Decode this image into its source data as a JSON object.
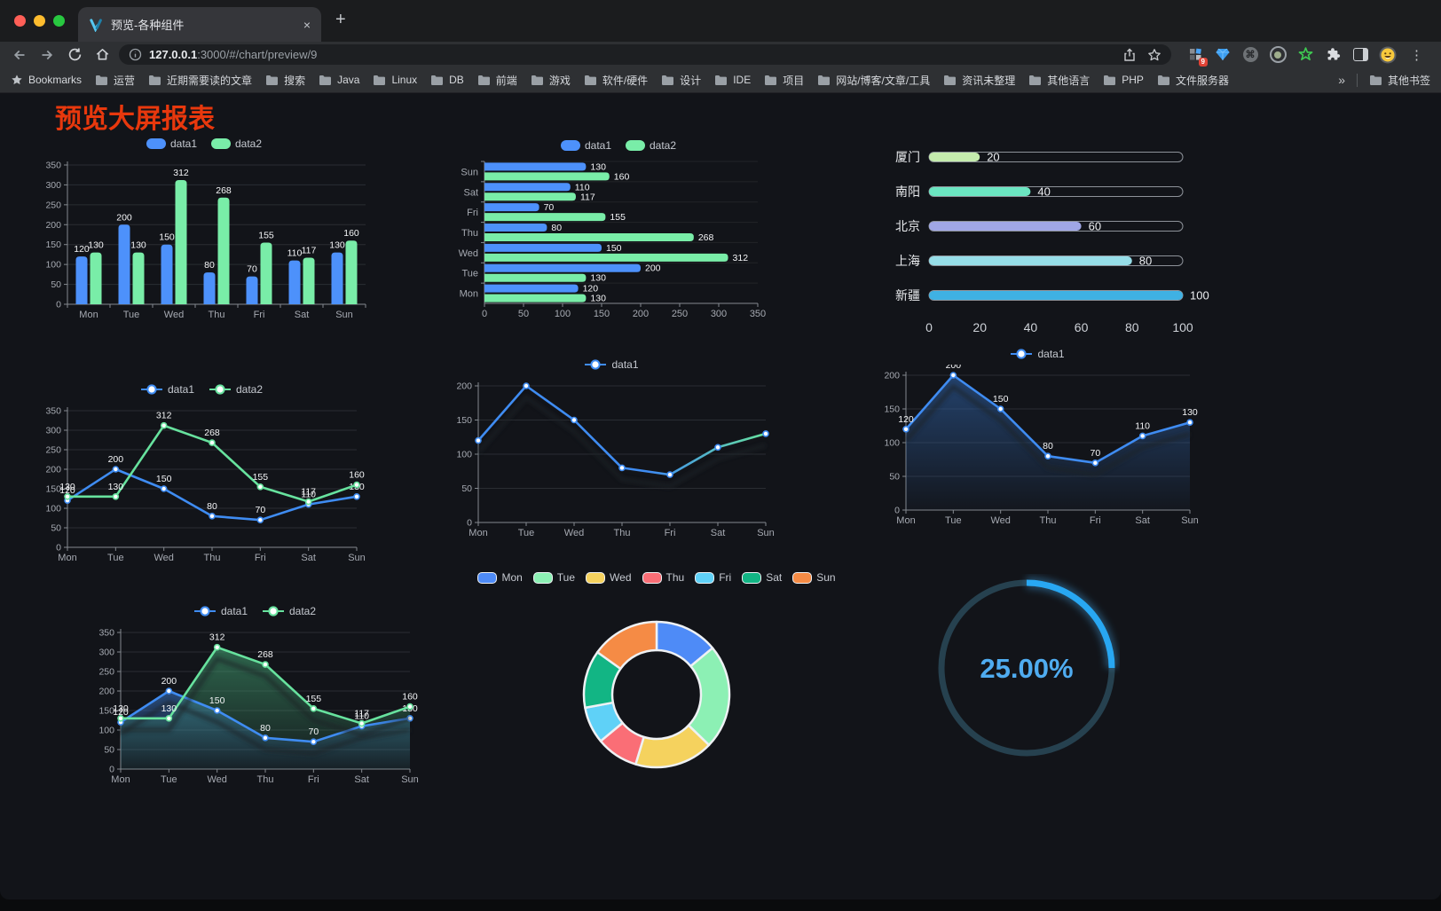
{
  "browser": {
    "tab_title": "预览-各种组件",
    "close_glyph": "×",
    "newtab_glyph": "+",
    "url_host": "127.0.0.1",
    "url_rest": ":3000/#/chart/preview/9",
    "bookmarks_label": "Bookmarks",
    "bookmarks": [
      "运营",
      "近期需要读的文章",
      "搜索",
      "Java",
      "Linux",
      "DB",
      "前端",
      "游戏",
      "软件/硬件",
      "设计",
      "IDE",
      "项目",
      "网站/博客/文章/工具",
      "资讯未整理",
      "其他语言",
      "PHP",
      "文件服务器"
    ],
    "overflow_glyph": "»",
    "other_bookmarks": "其他书签",
    "menu_glyph": "⋮",
    "extensions": {
      "badge": "9",
      "command_glyph": "⌘"
    }
  },
  "page": {
    "title": "预览大屏报表",
    "title_color": "#e8380d"
  },
  "colors": {
    "background": "#121419",
    "grid": "#2a2d33",
    "axis": "#84898f",
    "axis_label": "#a6aab2",
    "value_label": "#f4f5f7",
    "title_red": "#e8380d",
    "accent_blue": "#4D91FB",
    "accent_green": "#79EDA8",
    "gauge_blue": "#28A7F2"
  },
  "chart_data": [
    {
      "id": "c1",
      "name": "grouped-bar",
      "type": "bar",
      "categories": [
        "Mon",
        "Tue",
        "Wed",
        "Thu",
        "Fri",
        "Sat",
        "Sun"
      ],
      "series": [
        {
          "name": "data1",
          "color": "#4D91FB",
          "values": [
            120,
            200,
            150,
            80,
            70,
            110,
            130
          ]
        },
        {
          "name": "data2",
          "color": "#79EDA8",
          "values": [
            130,
            130,
            312,
            268,
            155,
            117,
            160
          ]
        }
      ],
      "ymax": 350,
      "ystep": 50,
      "value_labels": true,
      "legend": "pill"
    },
    {
      "id": "c2",
      "name": "grouped-horizontal-bar",
      "type": "hbar",
      "categories": [
        "Mon",
        "Tue",
        "Wed",
        "Thu",
        "Fri",
        "Sat",
        "Sun"
      ],
      "category_order": "reversed",
      "series": [
        {
          "name": "data1",
          "color": "#4D91FB",
          "values": [
            120,
            200,
            150,
            80,
            70,
            110,
            130
          ]
        },
        {
          "name": "data2",
          "color": "#79EDA8",
          "values": [
            130,
            130,
            312,
            268,
            155,
            117,
            160
          ]
        }
      ],
      "xmax": 350,
      "xstep": 50,
      "value_labels": true,
      "legend": "pill"
    },
    {
      "id": "c3",
      "name": "city-progress",
      "type": "progress",
      "max": 100,
      "ticks": [
        0,
        20,
        40,
        60,
        80,
        100
      ],
      "items": [
        {
          "label": "厦门",
          "value": 20,
          "color": "#c4ebad"
        },
        {
          "label": "南阳",
          "value": 40,
          "color": "#6be6c1"
        },
        {
          "label": "北京",
          "value": 60,
          "color": "#a0a7e6"
        },
        {
          "label": "上海",
          "value": 80,
          "color": "#96dee8"
        },
        {
          "label": "新疆",
          "value": 100,
          "color": "#3fb1e3"
        }
      ]
    },
    {
      "id": "c4",
      "name": "two-series-line",
      "type": "line",
      "categories": [
        "Mon",
        "Tue",
        "Wed",
        "Thu",
        "Fri",
        "Sat",
        "Sun"
      ],
      "series": [
        {
          "name": "data1",
          "color": "#3F8CF2",
          "values": [
            120,
            200,
            150,
            80,
            70,
            110,
            130
          ]
        },
        {
          "name": "data2",
          "color": "#67E29E",
          "values": [
            130,
            130,
            312,
            268,
            155,
            117,
            160
          ]
        }
      ],
      "ymax": 350,
      "ystep": 50,
      "value_labels": true,
      "markers": true,
      "legend": "line"
    },
    {
      "id": "c5",
      "name": "gradient-line",
      "type": "line",
      "categories": [
        "Mon",
        "Tue",
        "Wed",
        "Thu",
        "Fri",
        "Sat",
        "Sun"
      ],
      "series": [
        {
          "name": "data1",
          "color": "#3F8CF2",
          "color_end": "#67E29E",
          "values": [
            120,
            200,
            150,
            80,
            70,
            110,
            130
          ]
        }
      ],
      "ymax": 200,
      "ystep": 50,
      "value_labels": false,
      "markers": true,
      "shadow": true,
      "legend": "line"
    },
    {
      "id": "c6",
      "name": "single-area-line",
      "type": "line",
      "categories": [
        "Mon",
        "Tue",
        "Wed",
        "Thu",
        "Fri",
        "Sat",
        "Sun"
      ],
      "series": [
        {
          "name": "data1",
          "color": "#3F8CF2",
          "area": [
            "rgba(47,95,160,0.62)",
            "rgba(47,95,160,0.04)"
          ],
          "values": [
            120,
            200,
            150,
            80,
            70,
            110,
            130
          ]
        }
      ],
      "ymax": 200,
      "ystep": 50,
      "value_labels": true,
      "markers": true,
      "shadow": true,
      "legend": "line"
    },
    {
      "id": "c7",
      "name": "two-series-area-line",
      "type": "line",
      "categories": [
        "Mon",
        "Tue",
        "Wed",
        "Thu",
        "Fri",
        "Sat",
        "Sun"
      ],
      "series": [
        {
          "name": "data1",
          "color": "#3F8CF2",
          "area": [
            "rgba(60,120,200,0.55)",
            "rgba(60,120,200,0.05)"
          ],
          "values": [
            120,
            200,
            150,
            80,
            70,
            110,
            130
          ]
        },
        {
          "name": "data2",
          "color": "#67E29E",
          "area": [
            "rgba(70,170,120,0.55)",
            "rgba(70,170,120,0.05)"
          ],
          "values": [
            130,
            130,
            312,
            268,
            155,
            117,
            160
          ]
        }
      ],
      "ymax": 350,
      "ystep": 50,
      "value_labels": true,
      "markers": true,
      "shadow": true,
      "legend": "line"
    },
    {
      "id": "c8",
      "name": "weekday-donut",
      "type": "donut",
      "legend": "pill-bordered",
      "items": [
        {
          "name": "Mon",
          "value": 120,
          "color": "#4E8BF7"
        },
        {
          "name": "Tue",
          "value": 200,
          "color": "#8CF0B4"
        },
        {
          "name": "Wed",
          "value": 150,
          "color": "#F5D25E"
        },
        {
          "name": "Thu",
          "value": 80,
          "color": "#FA6E76"
        },
        {
          "name": "Fri",
          "value": 70,
          "color": "#5FD1F7"
        },
        {
          "name": "Sat",
          "value": 110,
          "color": "#12B584"
        },
        {
          "name": "Sun",
          "value": 130,
          "color": "#F58B45"
        }
      ]
    },
    {
      "id": "c9",
      "name": "ring-progress-gauge",
      "type": "ring",
      "percent": 25,
      "label": "25.00%",
      "color": "#28A7F2",
      "track_color": "#26414F",
      "label_color": "#4FACF0"
    }
  ]
}
